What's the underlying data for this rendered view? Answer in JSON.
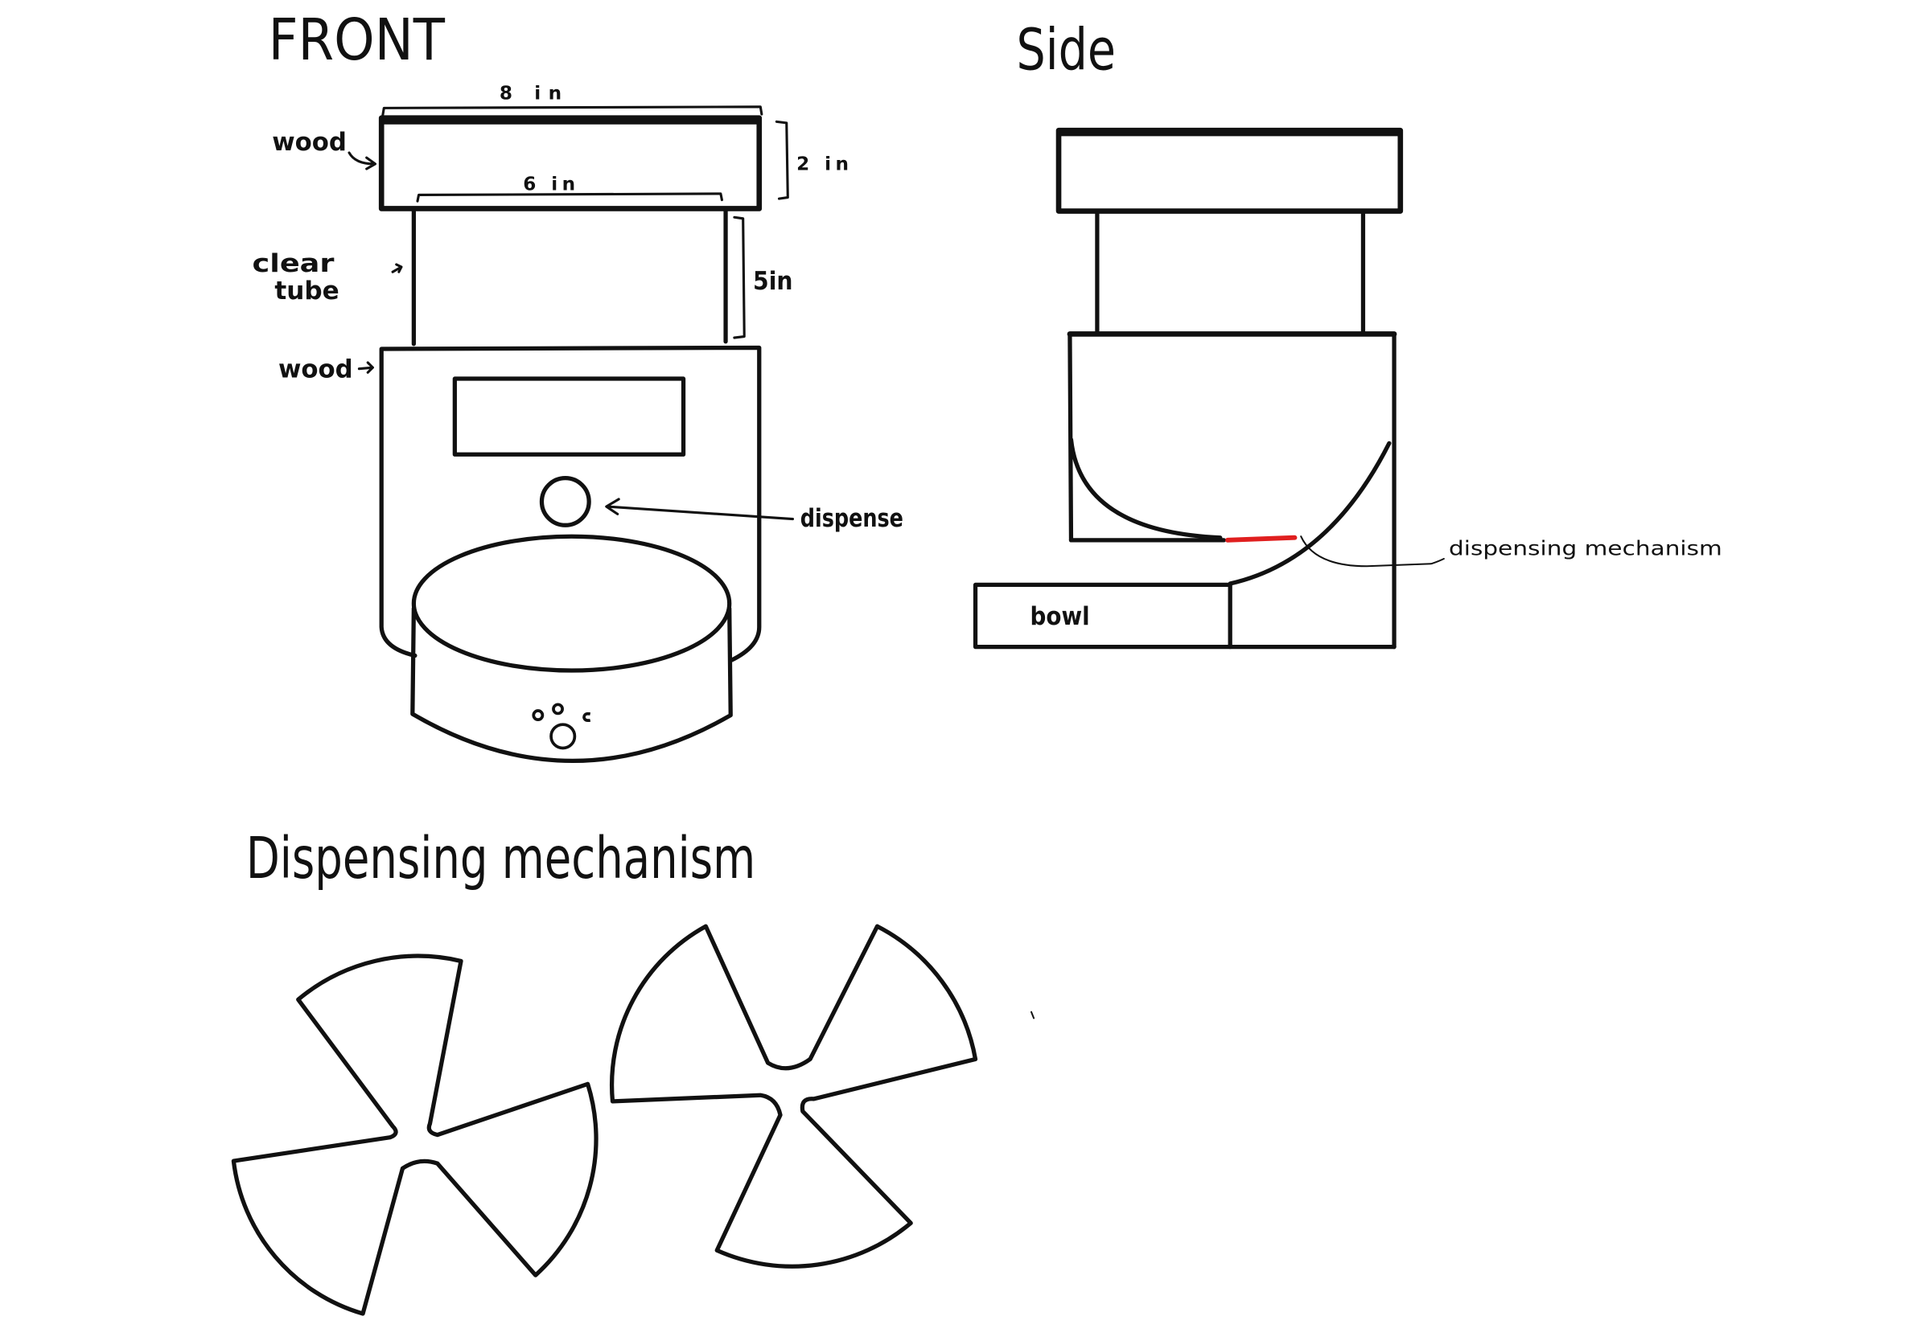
{
  "front": {
    "title": "FRONT",
    "dim_top_width": "8 in",
    "dim_inner_width": "6 in",
    "dim_block_height": "2 in",
    "dim_tube_height": "5in",
    "label_top_wood": "wood",
    "label_clear_tube": [
      "clear",
      "tube"
    ],
    "label_base_wood": "wood",
    "label_dispense": "dispense"
  },
  "side": {
    "title": "Side",
    "label_mechanism": "dispensing mechanism",
    "label_bowl": "bowl"
  },
  "mechanism": {
    "title": "Dispensing mechanism"
  },
  "colors": {
    "ink": "#111111",
    "highlight": "#e01f1f",
    "background": "#ffffff"
  }
}
